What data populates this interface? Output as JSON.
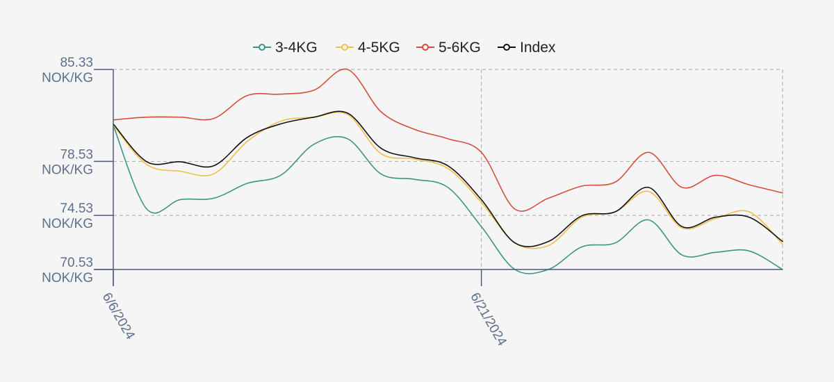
{
  "chart_data": {
    "type": "line",
    "title": "",
    "xlabel": "",
    "ylabel": "",
    "legend_position": "top",
    "grid": true,
    "y_unit": "NOK/KG",
    "yticks": [
      70.53,
      74.53,
      78.53,
      85.33
    ],
    "ylim": [
      70.53,
      85.33
    ],
    "xticks": [
      {
        "label": "6/6/2024",
        "index": 0
      },
      {
        "label": "6/21/2024",
        "index": 11
      }
    ],
    "x": [
      "2024-06-06",
      "2024-06-07",
      "2024-06-10",
      "2024-06-11",
      "2024-06-12",
      "2024-06-13",
      "2024-06-14",
      "2024-06-17",
      "2024-06-18",
      "2024-06-19",
      "2024-06-20",
      "2024-06-21",
      "2024-06-24",
      "2024-06-25",
      "2024-06-26",
      "2024-06-27",
      "2024-06-28",
      "2024-07-01",
      "2024-07-02",
      "2024-07-03",
      "2024-07-04"
    ],
    "series": [
      {
        "name": "3-4KG",
        "color": "#3a9684",
        "values": [
          81.2,
          75.0,
          75.7,
          75.8,
          76.9,
          77.5,
          79.8,
          80.2,
          77.6,
          77.2,
          76.6,
          73.7,
          70.53,
          70.53,
          72.2,
          72.5,
          74.2,
          71.6,
          71.8,
          71.9,
          70.53
        ]
      },
      {
        "name": "4-5KG",
        "color": "#f0bf45",
        "values": [
          81.2,
          78.3,
          77.8,
          77.6,
          80.0,
          81.5,
          81.8,
          82.0,
          79.1,
          78.7,
          78.0,
          75.5,
          72.5,
          72.3,
          74.4,
          74.8,
          76.3,
          73.6,
          74.3,
          74.8,
          72.4
        ]
      },
      {
        "name": "5-6KG",
        "color": "#d74d3b",
        "values": [
          81.6,
          81.8,
          81.8,
          81.7,
          83.4,
          83.5,
          83.8,
          85.33,
          82.2,
          80.9,
          80.2,
          79.2,
          75.0,
          75.8,
          76.7,
          77.0,
          79.2,
          76.6,
          77.5,
          76.8,
          76.2
        ]
      },
      {
        "name": "Index",
        "color": "#111111",
        "values": [
          81.3,
          78.5,
          78.5,
          78.2,
          80.3,
          81.3,
          81.8,
          82.1,
          79.5,
          78.8,
          78.2,
          75.7,
          72.5,
          72.6,
          74.5,
          74.8,
          76.6,
          73.7,
          74.4,
          74.4,
          72.6
        ]
      }
    ]
  }
}
